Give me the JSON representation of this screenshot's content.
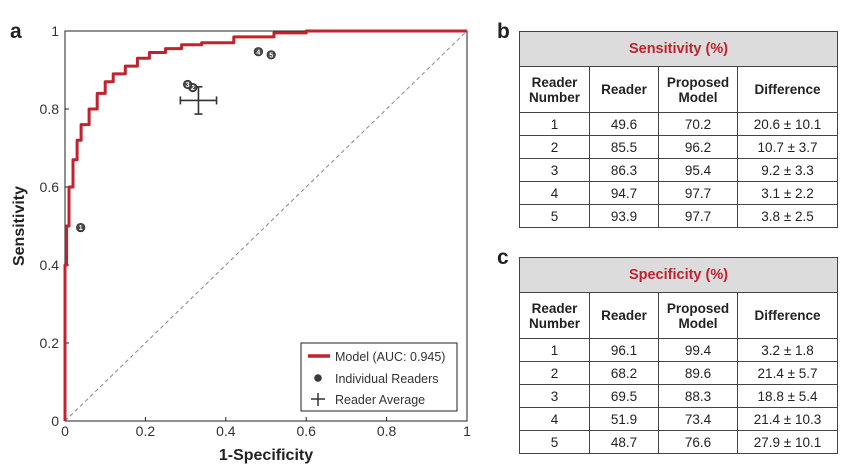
{
  "panels": {
    "a": "a",
    "b": "b",
    "c": "c"
  },
  "chart_data": {
    "type": "line",
    "xlabel": "1-Specificity",
    "ylabel": "Sensitivity",
    "xlim": [
      0,
      1
    ],
    "ylim": [
      0,
      1
    ],
    "x_ticks": [
      "0",
      "0.2",
      "0.4",
      "0.6",
      "0.8",
      "1"
    ],
    "y_ticks": [
      "0",
      "0.2",
      "0.4",
      "0.6",
      "0.8",
      "1"
    ],
    "series": [
      {
        "name": "Model (AUC: 0.945)",
        "color": "#c0222e",
        "x": [
          0,
          0,
          0.004,
          0.004,
          0.01,
          0.01,
          0.02,
          0.02,
          0.03,
          0.03,
          0.04,
          0.04,
          0.06,
          0.06,
          0.08,
          0.08,
          0.1,
          0.1,
          0.12,
          0.12,
          0.15,
          0.15,
          0.18,
          0.18,
          0.21,
          0.21,
          0.25,
          0.25,
          0.29,
          0.29,
          0.34,
          0.34,
          0.42,
          0.42,
          0.52,
          0.52,
          0.6,
          0.6,
          1
        ],
        "y": [
          0,
          0.4,
          0.4,
          0.5,
          0.5,
          0.6,
          0.6,
          0.67,
          0.67,
          0.72,
          0.72,
          0.76,
          0.76,
          0.8,
          0.8,
          0.84,
          0.84,
          0.87,
          0.87,
          0.89,
          0.89,
          0.91,
          0.91,
          0.93,
          0.93,
          0.945,
          0.945,
          0.955,
          0.955,
          0.965,
          0.965,
          0.97,
          0.97,
          0.985,
          0.985,
          0.995,
          0.995,
          1,
          1
        ]
      },
      {
        "name": "Chance",
        "x": [
          0,
          1
        ],
        "y": [
          0,
          1
        ]
      }
    ],
    "readers": {
      "name": "Individual Readers",
      "points": [
        {
          "label": "1",
          "x": 0.039,
          "y": 0.496
        },
        {
          "label": "2",
          "x": 0.318,
          "y": 0.855
        },
        {
          "label": "3",
          "x": 0.305,
          "y": 0.863
        },
        {
          "label": "4",
          "x": 0.481,
          "y": 0.947
        },
        {
          "label": "5",
          "x": 0.513,
          "y": 0.939
        }
      ]
    },
    "reader_average": {
      "name": "Reader Average",
      "x": 0.332,
      "y": 0.822,
      "x_err": 0.045,
      "y_err": 0.035
    },
    "legend": {
      "placement": "bottom-right",
      "items": [
        "Model (AUC: 0.945)",
        "Individual Readers",
        "Reader Average"
      ]
    }
  },
  "sensitivity_table": {
    "title": "Sensitivity (%)",
    "headers": [
      "Reader Number",
      "Reader",
      "Proposed Model",
      "Difference"
    ],
    "rows": [
      [
        "1",
        "49.6",
        "70.2",
        "20.6 ± 10.1"
      ],
      [
        "2",
        "85.5",
        "96.2",
        "10.7 ± 3.7"
      ],
      [
        "3",
        "86.3",
        "95.4",
        "9.2 ± 3.3"
      ],
      [
        "4",
        "94.7",
        "97.7",
        "3.1 ± 2.2"
      ],
      [
        "5",
        "93.9",
        "97.7",
        "3.8 ± 2.5"
      ]
    ]
  },
  "specificity_table": {
    "title": "Specificity (%)",
    "headers": [
      "Reader Number",
      "Reader",
      "Proposed Model",
      "Difference"
    ],
    "rows": [
      [
        "1",
        "96.1",
        "99.4",
        "3.2 ± 1.8"
      ],
      [
        "2",
        "68.2",
        "89.6",
        "21.4 ± 5.7"
      ],
      [
        "3",
        "69.5",
        "88.3",
        "18.8 ± 5.4"
      ],
      [
        "4",
        "51.9",
        "73.4",
        "21.4 ± 10.3"
      ],
      [
        "5",
        "48.7",
        "76.6",
        "27.9 ± 10.1"
      ]
    ]
  }
}
